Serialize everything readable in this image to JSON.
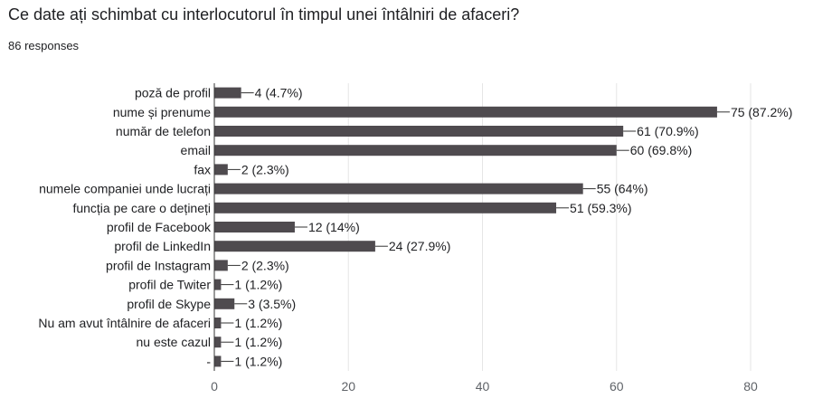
{
  "question": {
    "title": "Ce date ați schimbat cu interlocutorul în timpul unei întâlniri de afaceri?",
    "responses": "86 responses"
  },
  "colors": {
    "bar": "#4f4b4f",
    "grid": "#e6e6e6",
    "axis": "#333333",
    "text": "#202124",
    "tick_text": "#5f6368"
  },
  "chart_data": {
    "type": "bar",
    "orientation": "horizontal",
    "total_responses": 86,
    "categories": [
      "poză de profil",
      "nume și prenume",
      "număr de telefon",
      "email",
      "fax",
      "numele companiei unde lucrați",
      "funcția pe care o dețineți",
      "profil de Facebook",
      "profil de LinkedIn",
      "profil de Instagram",
      "profil de Twiter",
      "profil de Skype",
      "Nu am avut întâlnire de afaceri",
      "nu este cazul",
      "-"
    ],
    "values": [
      4,
      75,
      61,
      60,
      2,
      55,
      51,
      12,
      24,
      2,
      1,
      3,
      1,
      1,
      1
    ],
    "value_labels": [
      "4 (4.7%)",
      "75 (87.2%)",
      "61 (70.9%)",
      "60 (69.8%)",
      "2 (2.3%)",
      "55 (64%)",
      "51 (59.3%)",
      "12 (14%)",
      "24 (27.9%)",
      "2 (2.3%)",
      "1 (1.2%)",
      "3 (3.5%)",
      "1 (1.2%)",
      "1 (1.2%)",
      "1 (1.2%)"
    ],
    "xlim": [
      0,
      80
    ],
    "x_ticks": [
      0,
      20,
      40,
      60,
      80
    ],
    "grid": true,
    "legend": "none"
  }
}
